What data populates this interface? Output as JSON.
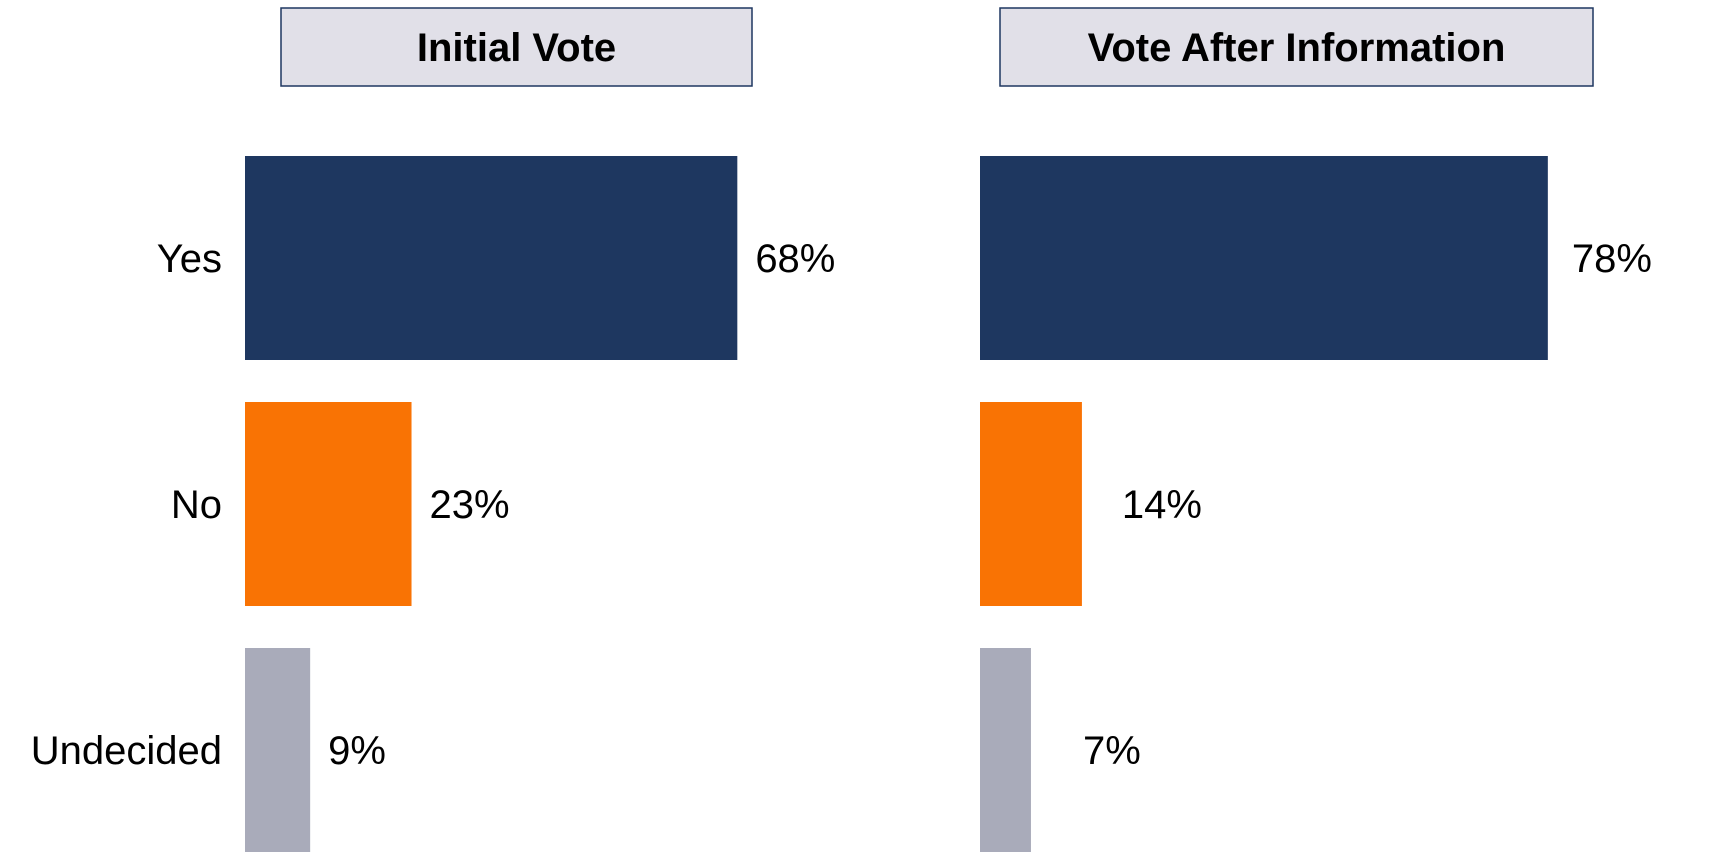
{
  "chart_data": {
    "type": "bar",
    "orientation": "horizontal",
    "categories": [
      "Yes",
      "No",
      "Undecided"
    ],
    "colors": [
      "#1e3760",
      "#f97304",
      "#a9abba"
    ],
    "panels": [
      {
        "title": "Initial Vote",
        "values": [
          68,
          23,
          9
        ],
        "value_labels": [
          "68%",
          "23%",
          "9%"
        ]
      },
      {
        "title": "Vote After Information",
        "values": [
          78,
          14,
          7
        ],
        "value_labels": [
          "78%",
          "14%",
          "7%"
        ]
      }
    ],
    "xlim": [
      0,
      100
    ],
    "grid": false,
    "legend": "none"
  }
}
